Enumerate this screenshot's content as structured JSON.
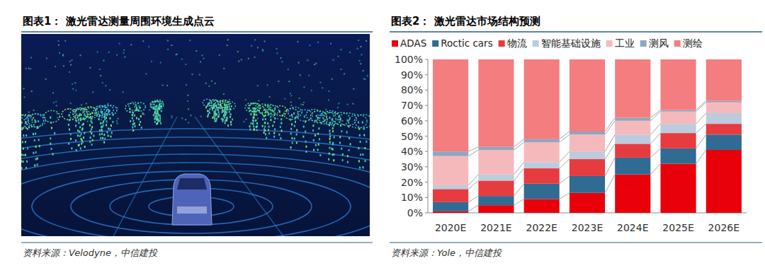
{
  "figure1": {
    "title": "图表1： 激光雷达测量周围环境生成点云",
    "source": "资料来源：Velodyne，中信建投"
  },
  "chart_data": {
    "type": "bar",
    "stacked": true,
    "title": "图表2： 激光雷达市场结构预测",
    "annotations": [
      "资料来源：Yole，中信建投"
    ],
    "categories": [
      "2020E",
      "2021E",
      "2022E",
      "2023E",
      "2024E",
      "2025E",
      "2026E"
    ],
    "series": [
      {
        "name": "ADAS",
        "color": "#e8000b",
        "values": [
          1,
          5,
          9,
          13,
          25,
          32,
          41
        ]
      },
      {
        "name": "Roctic cars",
        "color": "#2f6b92",
        "values": [
          6,
          6,
          10,
          11,
          11,
          10,
          10
        ]
      },
      {
        "name": "物流",
        "color": "#e63b3f",
        "values": [
          8.5,
          10,
          10,
          11,
          9,
          10,
          7
        ]
      },
      {
        "name": "智能基础设施",
        "color": "#bccbdd",
        "values": [
          2.5,
          4,
          4,
          5,
          6,
          6,
          7
        ]
      },
      {
        "name": "工业",
        "color": "#f6b9bb",
        "values": [
          19,
          16,
          13,
          11,
          9,
          8,
          7
        ]
      },
      {
        "name": "测风",
        "color": "#8ea7bf",
        "values": [
          3,
          2,
          2,
          2,
          2,
          1,
          1
        ]
      },
      {
        "name": "测绘",
        "color": "#f47d80",
        "values": [
          60,
          57,
          52,
          47,
          38,
          33,
          27
        ]
      }
    ],
    "ylim": [
      0,
      100
    ],
    "yticks": [
      {
        "value": 0,
        "label": "0%"
      },
      {
        "value": 10,
        "label": "10%"
      },
      {
        "value": 20,
        "label": "20%"
      },
      {
        "value": 30,
        "label": "30%"
      },
      {
        "value": 40,
        "label": "40%"
      },
      {
        "value": 50,
        "label": "50%"
      },
      {
        "value": 60,
        "label": "60%"
      },
      {
        "value": 70,
        "label": "70%"
      },
      {
        "value": 80,
        "label": "80%"
      },
      {
        "value": 90,
        "label": "90%"
      },
      {
        "value": 100,
        "label": "100%"
      }
    ],
    "legend": "top",
    "grid": false
  }
}
